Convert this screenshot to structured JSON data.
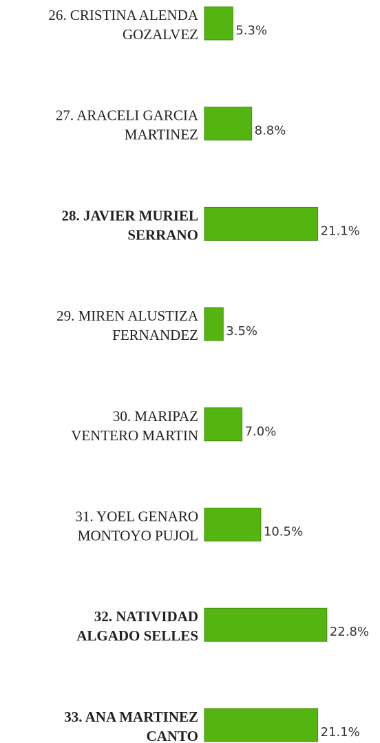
{
  "chart_data": {
    "type": "bar",
    "orientation": "horizontal",
    "color": "#55b510",
    "categories": [
      [
        "26. CRISTINA ALENDA",
        "GOZALVEZ"
      ],
      [
        "27. ARACELI GARCIA",
        "MARTINEZ"
      ],
      [
        "28. JAVIER MURIEL",
        "SERRANO"
      ],
      [
        "29. MIREN ALUSTIZA",
        "FERNANDEZ"
      ],
      [
        "30. MARIPAZ",
        "VENTERO MARTIN"
      ],
      [
        "31. YOEL GENARO",
        "MONTOYO PUJOL"
      ],
      [
        "32. NATIVIDAD",
        "ALGADO SELLES"
      ],
      [
        "33. ANA MARTINEZ",
        "CANTO"
      ]
    ],
    "values": [
      5.3,
      8.8,
      21.1,
      3.5,
      7.0,
      10.5,
      22.8,
      21.1
    ],
    "value_labels": [
      "5.3%",
      "8.8%",
      "21.1%",
      "3.5%",
      "7.0%",
      "10.5%",
      "22.8%",
      "21.1%"
    ],
    "bold": [
      false,
      false,
      true,
      false,
      false,
      false,
      true,
      true
    ]
  }
}
